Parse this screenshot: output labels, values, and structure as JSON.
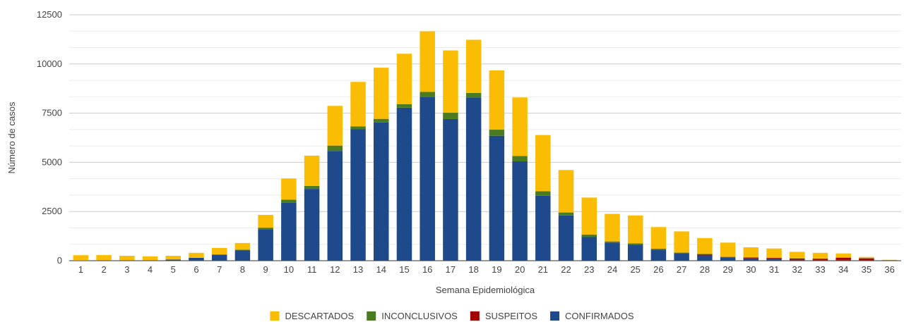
{
  "chart_data": {
    "type": "bar",
    "stacked": true,
    "title": "",
    "xlabel": "Semana Epidemiológica",
    "ylabel": "Número de casos",
    "ylim": [
      0,
      12500
    ],
    "yticks": [
      0,
      2500,
      5000,
      7500,
      10000,
      12500
    ],
    "grid": true,
    "legend_position": "bottom",
    "categories": [
      "1",
      "2",
      "3",
      "4",
      "5",
      "6",
      "7",
      "8",
      "9",
      "10",
      "11",
      "12",
      "13",
      "14",
      "15",
      "16",
      "17",
      "18",
      "19",
      "20",
      "21",
      "22",
      "23",
      "24",
      "25",
      "26",
      "27",
      "28",
      "29",
      "30",
      "31",
      "32",
      "33",
      "34",
      "35",
      "36"
    ],
    "series": [
      {
        "name": "CONFIRMADOS",
        "color": "#1e4a8c",
        "values": [
          10,
          15,
          20,
          20,
          60,
          150,
          300,
          520,
          1600,
          2950,
          3650,
          5580,
          6680,
          7030,
          7780,
          8310,
          7200,
          8300,
          6350,
          5050,
          3300,
          2300,
          1200,
          920,
          820,
          560,
          380,
          270,
          170,
          120,
          80,
          50,
          40,
          40,
          20,
          5
        ]
      },
      {
        "name": "SUSPEITOS",
        "color": "#a30000",
        "values": [
          0,
          0,
          0,
          0,
          0,
          0,
          0,
          0,
          0,
          0,
          0,
          0,
          0,
          0,
          0,
          0,
          0,
          0,
          0,
          0,
          0,
          0,
          0,
          0,
          0,
          0,
          0,
          50,
          20,
          40,
          60,
          60,
          60,
          110,
          100,
          20
        ]
      },
      {
        "name": "INCONCLUSIVOS",
        "color": "#4a7c1f",
        "values": [
          0,
          0,
          0,
          0,
          0,
          0,
          20,
          40,
          80,
          150,
          150,
          270,
          150,
          180,
          180,
          270,
          320,
          230,
          310,
          270,
          230,
          150,
          130,
          60,
          60,
          50,
          30,
          20,
          10,
          10,
          10,
          10,
          10,
          10,
          10,
          0
        ]
      },
      {
        "name": "DESCARTADOS",
        "color": "#fbbc04",
        "values": [
          270,
          270,
          230,
          200,
          190,
          250,
          330,
          340,
          650,
          1080,
          1540,
          2020,
          2260,
          2600,
          2560,
          3080,
          3170,
          2700,
          3010,
          2980,
          2860,
          2160,
          1880,
          1400,
          1420,
          1100,
          1080,
          810,
          720,
          510,
          470,
          330,
          290,
          210,
          60,
          20
        ]
      }
    ],
    "legend": [
      "DESCARTADOS",
      "INCONCLUSIVOS",
      "SUSPEITOS",
      "CONFIRMADOS"
    ]
  }
}
